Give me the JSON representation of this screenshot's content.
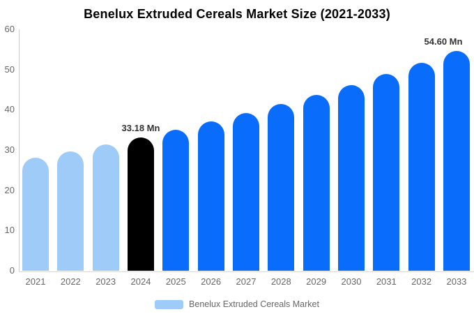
{
  "chart_data": {
    "type": "bar",
    "title": "Benelux Extruded Cereals Market Size (2021-2033)",
    "xlabel": "",
    "ylabel": "",
    "categories": [
      "2021",
      "2022",
      "2023",
      "2024",
      "2025",
      "2026",
      "2027",
      "2028",
      "2029",
      "2030",
      "2031",
      "2032",
      "2033"
    ],
    "values": [
      28.1,
      29.7,
      31.4,
      33.18,
      35.1,
      37.1,
      39.2,
      41.4,
      43.7,
      46.2,
      48.9,
      51.6,
      54.6
    ],
    "unit": "Mn",
    "bar_color_keys": [
      "historical",
      "historical",
      "historical",
      "current",
      "forecast",
      "forecast",
      "forecast",
      "forecast",
      "forecast",
      "forecast",
      "forecast",
      "forecast",
      "forecast"
    ],
    "colors": {
      "historical": "#9fcbf9",
      "current": "#000000",
      "forecast": "#0a6cfa"
    },
    "data_labels": [
      {
        "index": 3,
        "text": "33.18 Mn"
      },
      {
        "index": 12,
        "text": "54.60 Mn"
      }
    ],
    "ylim": [
      0,
      60
    ],
    "yticks": [
      0,
      10,
      20,
      30,
      40,
      50,
      60
    ],
    "grid": false,
    "legend": {
      "position": "bottom",
      "entries": [
        {
          "label": "Benelux Extruded Cereals Market",
          "swatch_color": "#9fcbf9"
        }
      ]
    }
  }
}
